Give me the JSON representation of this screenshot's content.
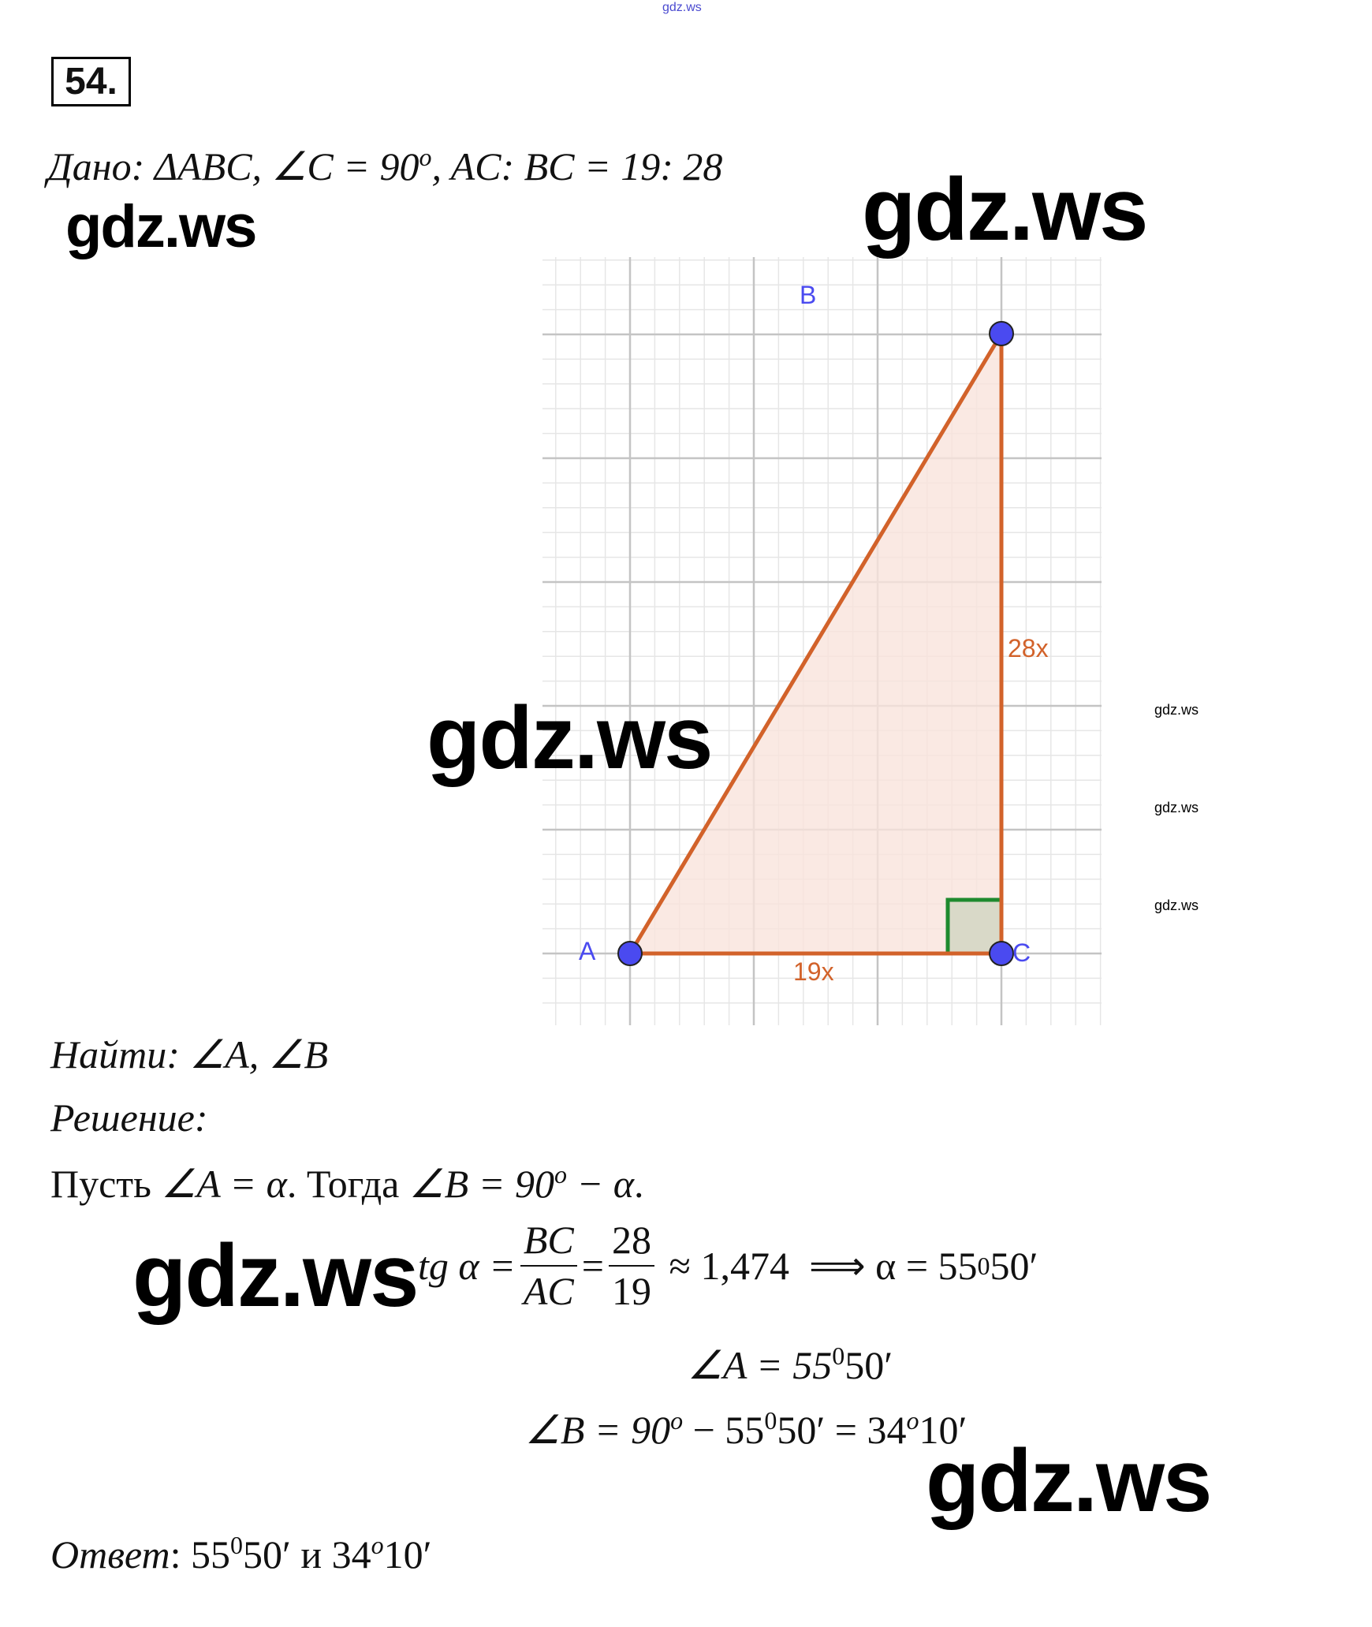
{
  "watermarks": {
    "top_small": "gdz.ws",
    "left_top": "gdz.ws",
    "right_top": "gdz.ws",
    "center": "gdz.ws",
    "side_1": "gdz.ws",
    "side_2": "gdz.ws",
    "side_3": "gdz.ws",
    "formula_left": "gdz.ws",
    "bottom_right": "gdz.ws"
  },
  "problem_number": "54.",
  "given": {
    "label": "Дано",
    "text": ": ΔABC,  ∠C = 90",
    "sup": "o",
    "text2": ",  AC: BC = 19: 28"
  },
  "figure": {
    "points": {
      "A": "A",
      "B": "B",
      "C": "C"
    },
    "side_ac": "19x",
    "side_bc": "28x",
    "colors": {
      "point": "#4a4af0",
      "side": "#d2622a",
      "fill": "#f9e4dc",
      "right_angle": "#1e8a2e",
      "grid_major": "#c4c4c4",
      "grid_minor": "#e6e6e6"
    }
  },
  "find": {
    "label": "Найти",
    "text": ": ∠A, ∠B"
  },
  "solution": {
    "label": "Решение",
    "colon": ":"
  },
  "let_line": {
    "p1": "Пусть ",
    "p2": "∠A = α",
    "p3": ". Тогда ",
    "p4": "∠B = 90",
    "sup": "o",
    "p5": " − α",
    "p6": "."
  },
  "tg_line": {
    "lhs": "tg α = ",
    "num1": "BC",
    "den1": "AC",
    "eq": " = ",
    "num2": "28",
    "den2": "19",
    "approx": " ≈ 1,474  ⟹ α = 55",
    "sup": "0",
    "rest": "50′"
  },
  "angle_a": {
    "text": "∠A = 55",
    "sup": "0",
    "rest": "50′"
  },
  "angle_b": {
    "t1": "∠B = 90",
    "s1": "o",
    "t2": " − 55",
    "s2": "0",
    "t3": "50′ = 34",
    "s3": "o",
    "t4": "10′"
  },
  "answer": {
    "label": "Ответ",
    "t1": ": 55",
    "s1": "0",
    "t2": "50′ и 34",
    "s2": "o",
    "t3": "10′"
  }
}
